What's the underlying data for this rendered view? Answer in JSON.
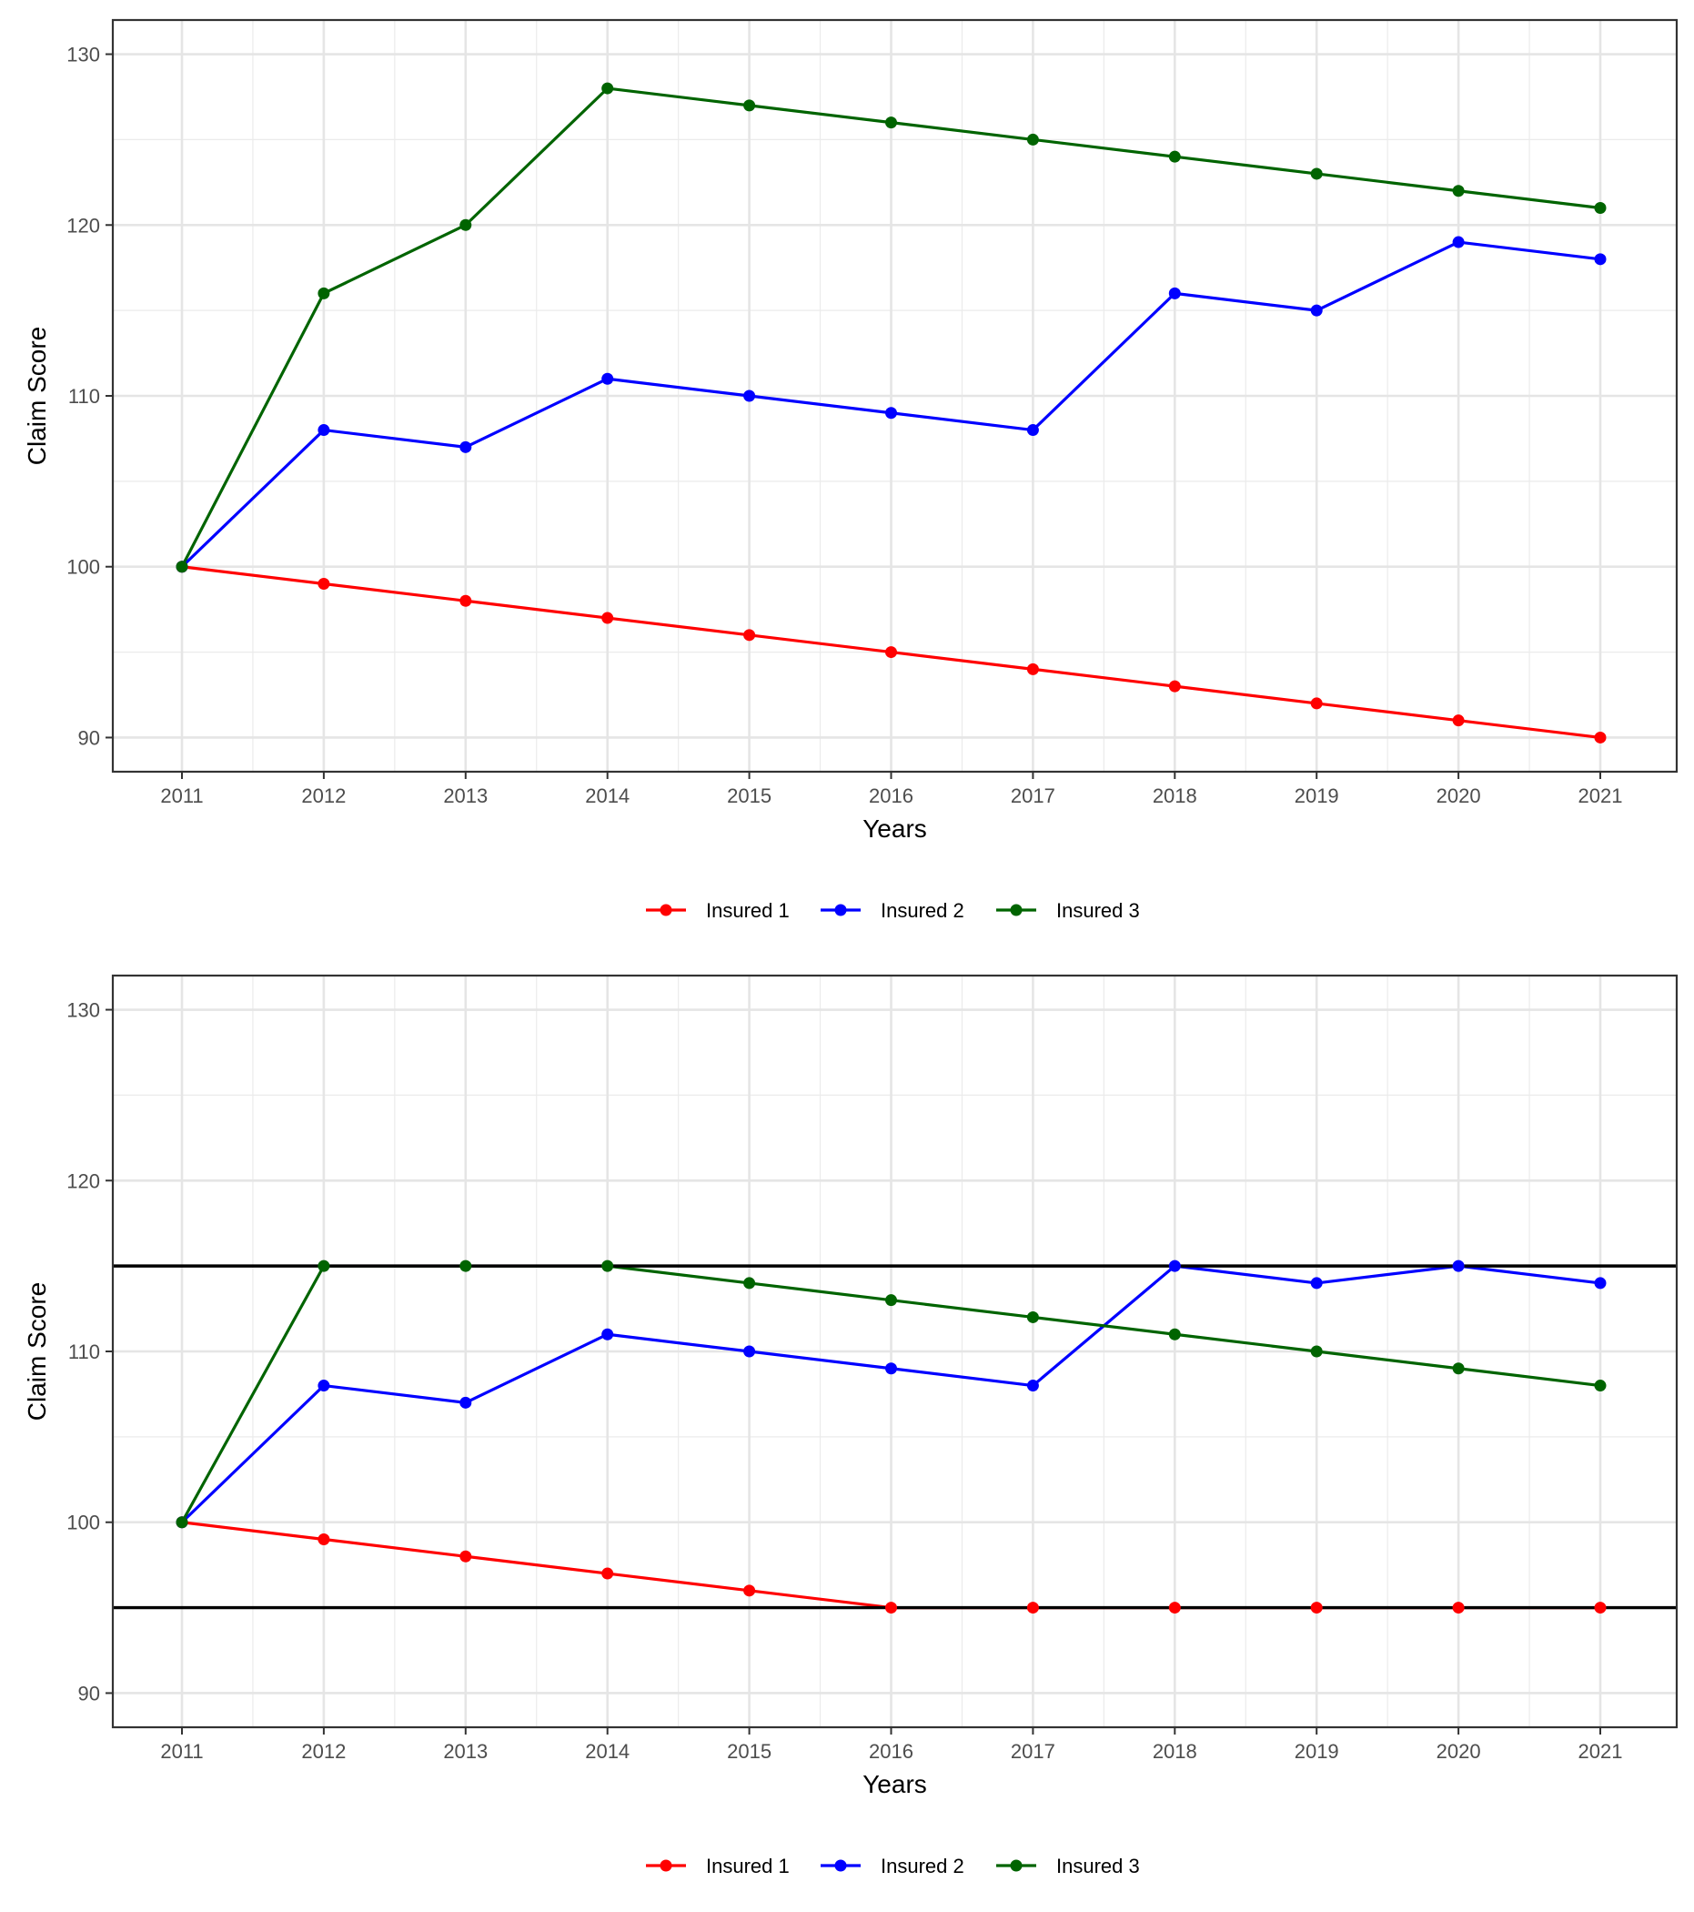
{
  "chart_data": [
    {
      "type": "line",
      "title": "",
      "xlabel": "Years",
      "ylabel": "Claim Score",
      "x": [
        "2011",
        "2012",
        "2013",
        "2014",
        "2015",
        "2016",
        "2017",
        "2018",
        "2019",
        "2020",
        "2021"
      ],
      "ylim": [
        88,
        132
      ],
      "yticks": [
        90,
        100,
        110,
        120,
        130
      ],
      "grid": true,
      "legend_position": "bottom",
      "series": [
        {
          "name": "Insured 1",
          "color": "#ff0000",
          "values": [
            100,
            99,
            98,
            97,
            96,
            95,
            94,
            93,
            92,
            91,
            90
          ]
        },
        {
          "name": "Insured 2",
          "color": "#0000ff",
          "values": [
            100,
            108,
            107,
            111,
            110,
            109,
            108,
            116,
            115,
            119,
            118
          ]
        },
        {
          "name": "Insured 3",
          "color": "#006400",
          "values": [
            100,
            116,
            120,
            128,
            127,
            126,
            125,
            124,
            123,
            122,
            121
          ]
        }
      ],
      "hlines": []
    },
    {
      "type": "line",
      "title": "",
      "xlabel": "Years",
      "ylabel": "Claim Score",
      "x": [
        "2011",
        "2012",
        "2013",
        "2014",
        "2015",
        "2016",
        "2017",
        "2018",
        "2019",
        "2020",
        "2021"
      ],
      "ylim": [
        88,
        132
      ],
      "yticks": [
        90,
        100,
        110,
        120,
        130
      ],
      "grid": true,
      "legend_position": "bottom",
      "series": [
        {
          "name": "Insured 1",
          "color": "#ff0000",
          "values": [
            100,
            99,
            98,
            97,
            96,
            95,
            95,
            95,
            95,
            95,
            95
          ]
        },
        {
          "name": "Insured 2",
          "color": "#0000ff",
          "values": [
            100,
            108,
            107,
            111,
            110,
            109,
            108,
            115,
            114,
            115,
            114
          ]
        },
        {
          "name": "Insured 3",
          "color": "#006400",
          "values": [
            100,
            115,
            115,
            115,
            114,
            113,
            112,
            111,
            110,
            109,
            108
          ]
        }
      ],
      "hlines": [
        115,
        95
      ]
    }
  ]
}
